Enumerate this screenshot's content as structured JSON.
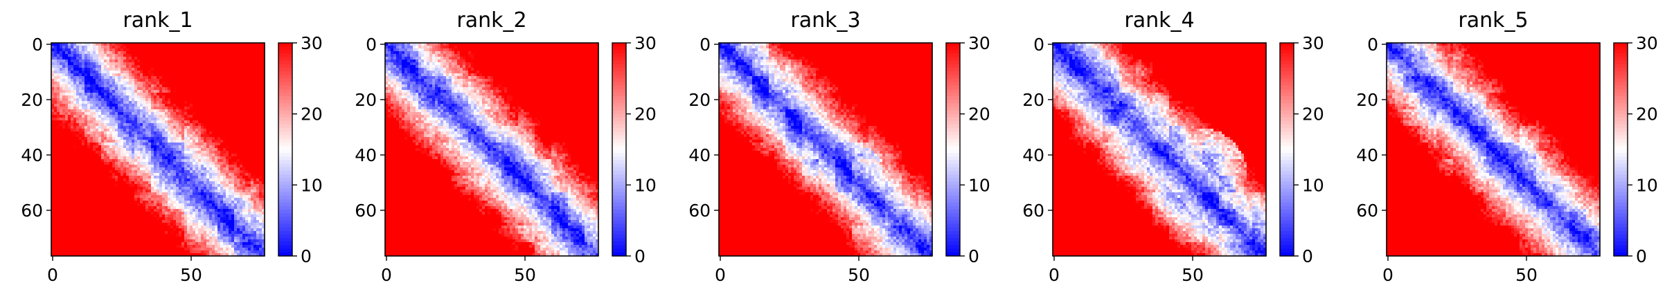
{
  "chart_data": [
    {
      "type": "heatmap",
      "title": "rank_1",
      "xticks": [
        0,
        50
      ],
      "yticks": [
        0,
        20,
        40,
        60
      ],
      "n": 77,
      "colorbar": {
        "ticks": [
          0,
          10,
          20,
          30
        ],
        "range": [
          0,
          30
        ],
        "colormap": "bwr"
      }
    },
    {
      "type": "heatmap",
      "title": "rank_2",
      "xticks": [
        0,
        50
      ],
      "yticks": [
        0,
        20,
        40,
        60
      ],
      "n": 77,
      "colorbar": {
        "ticks": [
          0,
          10,
          20,
          30
        ],
        "range": [
          0,
          30
        ],
        "colormap": "bwr"
      }
    },
    {
      "type": "heatmap",
      "title": "rank_3",
      "xticks": [
        0,
        50
      ],
      "yticks": [
        0,
        20,
        40,
        60
      ],
      "n": 77,
      "colorbar": {
        "ticks": [
          0,
          10,
          20,
          30
        ],
        "range": [
          0,
          30
        ],
        "colormap": "bwr"
      }
    },
    {
      "type": "heatmap",
      "title": "rank_4",
      "xticks": [
        0,
        50
      ],
      "yticks": [
        0,
        20,
        40,
        60
      ],
      "n": 77,
      "colorbar": {
        "ticks": [
          0,
          10,
          20,
          30
        ],
        "range": [
          0,
          30
        ],
        "colormap": "bwr"
      }
    },
    {
      "type": "heatmap",
      "title": "rank_5",
      "xticks": [
        0,
        50
      ],
      "yticks": [
        0,
        20,
        40,
        60
      ],
      "n": 77,
      "colorbar": {
        "ticks": [
          0,
          10,
          20,
          30
        ],
        "range": [
          0,
          30
        ],
        "colormap": "bwr"
      }
    }
  ],
  "colors": {
    "low": "#0000ff",
    "mid": "#ffffff",
    "high": "#ff0000"
  }
}
